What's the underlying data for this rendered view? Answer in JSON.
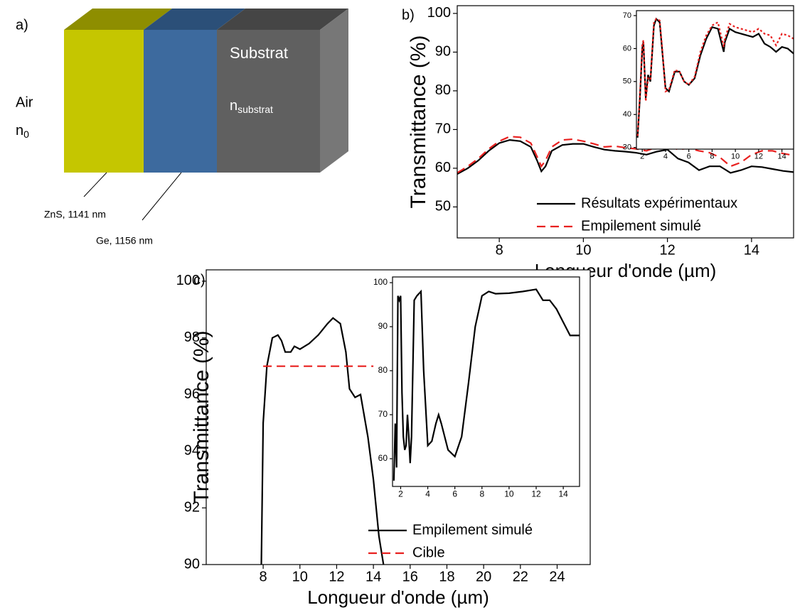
{
  "diagram": {
    "label": "a)",
    "air": "Air",
    "air_index": {
      "symbol": "n",
      "subscript": "0"
    },
    "substrate": "Substrat",
    "substrate_index": {
      "symbol": "n",
      "subscript": "substrat"
    },
    "layers": [
      {
        "label": "ZnS, 1141 nm",
        "color": "#c5c600"
      },
      {
        "label": "Ge, 1156 nm",
        "color": "#3d6a9e"
      }
    ]
  },
  "chart_data": [
    {
      "type": "line",
      "label": "b)",
      "xlabel": "Longueur d'onde (µm)",
      "ylabel": "Transmittance (%)",
      "xlim": [
        7,
        15
      ],
      "ylim": [
        42,
        102
      ],
      "xticks": [
        8,
        10,
        12,
        14
      ],
      "yticks": [
        50,
        60,
        70,
        80,
        90,
        100
      ],
      "legend": "lower right",
      "series": [
        {
          "name": "Résultats expérimentaux",
          "color": "#000000",
          "linestyle": "solid",
          "x": [
            7,
            7.25,
            7.5,
            7.75,
            8,
            8.25,
            8.5,
            8.75,
            8.9,
            9,
            9.1,
            9.25,
            9.5,
            9.75,
            10,
            10.25,
            10.5,
            10.75,
            11,
            11.25,
            11.5,
            11.75,
            12,
            12.25,
            12.5,
            12.75,
            13,
            13.25,
            13.5,
            13.75,
            14,
            14.25,
            14.5,
            14.75,
            15
          ],
          "values": [
            58.5,
            60,
            62,
            64.5,
            66.5,
            67.3,
            67,
            65.5,
            62,
            59.2,
            60.5,
            64.5,
            66,
            66.3,
            66.3,
            65.5,
            64.8,
            64.5,
            64.3,
            64,
            63.5,
            64.3,
            64.8,
            62.5,
            61.5,
            59.5,
            60.5,
            60.5,
            58.8,
            59.5,
            60.5,
            60.3,
            59.8,
            59.3,
            59
          ]
        },
        {
          "name": "Empilement simulé",
          "color": "#e8201f",
          "linestyle": "dashed",
          "x": [
            7,
            7.25,
            7.5,
            7.75,
            8,
            8.25,
            8.5,
            8.75,
            8.9,
            9,
            9.1,
            9.25,
            9.5,
            9.75,
            10,
            10.25,
            10.5,
            10.75,
            11,
            11.25,
            11.5,
            11.75,
            12,
            12.25,
            12.5,
            12.75,
            13,
            13.25,
            13.5,
            13.75,
            14,
            14.25,
            14.5,
            14.75,
            15
          ],
          "values": [
            58.8,
            60.5,
            62.5,
            65,
            67,
            68.2,
            68,
            66.5,
            63,
            60.5,
            62,
            65.5,
            67.3,
            67.5,
            67,
            66.3,
            65.5,
            65.7,
            65.3,
            65,
            64.5,
            65.5,
            66,
            64.8,
            65.2,
            64.5,
            64,
            62.8,
            60.5,
            61.5,
            63.5,
            64.5,
            64.5,
            63.8,
            63.3
          ]
        }
      ]
    },
    {
      "type": "line",
      "xlim": [
        1.5,
        15
      ],
      "ylim": [
        29.5,
        71.5
      ],
      "xticks": [
        2,
        4,
        6,
        8,
        10,
        12,
        14
      ],
      "yticks": [
        30,
        40,
        50,
        60,
        70
      ],
      "series": [
        {
          "color": "#000000",
          "linestyle": "solid",
          "x": [
            1.6,
            1.8,
            2,
            2.1,
            2.3,
            2.5,
            2.7,
            3,
            3.2,
            3.5,
            3.7,
            4,
            4.3,
            4.8,
            5.2,
            5.6,
            6,
            6.5,
            7,
            7.5,
            8,
            8.5,
            9,
            9.1,
            9.5,
            10,
            11,
            11.5,
            12,
            12.5,
            13,
            13.5,
            14,
            14.5,
            15
          ],
          "values": [
            33,
            45,
            60,
            62,
            45,
            52,
            50,
            67,
            69,
            68,
            60,
            48,
            47,
            53,
            53,
            50,
            49,
            51,
            58,
            63,
            66.5,
            66,
            59,
            62,
            66,
            65,
            64,
            63.5,
            64.5,
            61.5,
            60.5,
            59,
            60.5,
            60,
            58.5
          ]
        },
        {
          "color": "#e8201f",
          "linestyle": "dotted",
          "x": [
            1.6,
            1.8,
            2,
            2.1,
            2.3,
            2.5,
            2.7,
            3,
            3.2,
            3.5,
            3.7,
            4,
            4.3,
            4.8,
            5.2,
            5.6,
            6,
            6.5,
            7,
            7.5,
            8,
            8.5,
            9,
            9.1,
            9.5,
            10,
            11,
            11.5,
            12,
            12.5,
            13,
            13.5,
            14,
            14.5,
            15
          ],
          "values": [
            33.5,
            46,
            61,
            62.5,
            44,
            51,
            50.5,
            68,
            69,
            68.5,
            61,
            47,
            47.5,
            53.5,
            53,
            50,
            49,
            51.5,
            59,
            64,
            67,
            68,
            60.5,
            63,
            67.5,
            66.5,
            65.5,
            65,
            66,
            64.5,
            64,
            61,
            64.5,
            64,
            63
          ]
        }
      ]
    },
    {
      "type": "line",
      "label": "c)",
      "xlabel": "Longueur d'onde (µm)",
      "ylabel": "Transmittance (%)",
      "xlim": [
        4.9,
        25.8
      ],
      "ylim": [
        90,
        100.4
      ],
      "xticks": [
        8,
        10,
        12,
        14,
        16,
        18,
        20,
        22,
        24
      ],
      "yticks": [
        90,
        92,
        94,
        96,
        98,
        100
      ],
      "legend": "lower right",
      "series": [
        {
          "name": "Empilement simulé",
          "color": "#000000",
          "linestyle": "solid",
          "x": [
            7.9,
            8,
            8.2,
            8.5,
            8.8,
            9,
            9.2,
            9.5,
            9.7,
            10,
            10.5,
            11,
            11.5,
            11.8,
            12.2,
            12.5,
            12.7,
            13,
            13.3,
            13.7,
            14,
            14.3,
            14.6
          ],
          "values": [
            90,
            95,
            97,
            98,
            98.1,
            97.9,
            97.5,
            97.5,
            97.7,
            97.6,
            97.8,
            98.1,
            98.5,
            98.7,
            98.5,
            97.5,
            96.2,
            95.9,
            96,
            94.5,
            93,
            91,
            89.8
          ]
        },
        {
          "name": "Cible",
          "color": "#e8201f",
          "linestyle": "dashed",
          "x": [
            8,
            14
          ],
          "values": [
            97,
            97
          ]
        }
      ]
    },
    {
      "type": "line",
      "xlim": [
        1.4,
        15.2
      ],
      "ylim": [
        53.7,
        101.3
      ],
      "xticks": [
        2,
        4,
        6,
        8,
        10,
        12,
        14
      ],
      "yticks": [
        60,
        70,
        80,
        90,
        100
      ],
      "series": [
        {
          "color": "#000000",
          "linestyle": "solid",
          "x": [
            1.5,
            1.6,
            1.7,
            1.8,
            1.9,
            2,
            2.1,
            2.2,
            2.3,
            2.4,
            2.5,
            2.6,
            2.7,
            2.8,
            3,
            3.2,
            3.5,
            3.7,
            4,
            4.3,
            4.6,
            4.8,
            5,
            5.5,
            6,
            6.5,
            7,
            7.5,
            8,
            8.5,
            9,
            10,
            11,
            12,
            12.5,
            13,
            13.5,
            14,
            14.5,
            15.2
          ],
          "values": [
            55,
            68,
            58,
            97,
            96,
            97,
            75,
            65,
            62,
            63,
            70,
            65,
            59,
            65,
            96,
            97,
            98,
            80,
            63,
            64,
            68,
            70,
            68,
            62,
            60.5,
            65,
            77,
            90,
            97,
            98,
            97.5,
            97.6,
            98,
            98.5,
            96,
            96,
            94,
            91,
            88,
            88
          ]
        }
      ]
    }
  ]
}
